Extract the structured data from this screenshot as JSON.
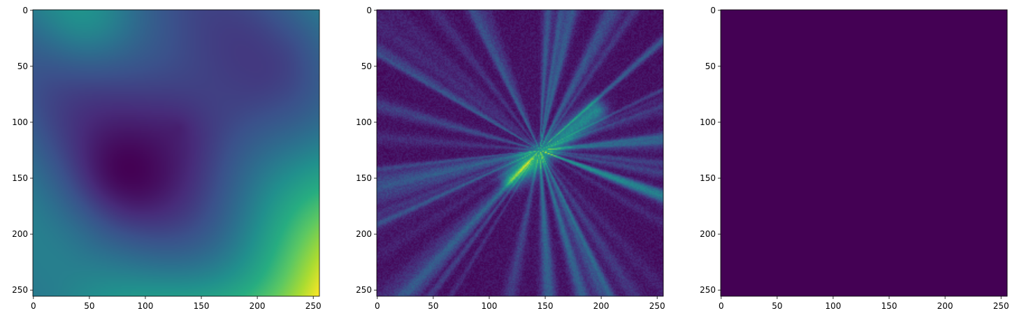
{
  "chart_data": [
    {
      "type": "heatmap",
      "colormap": "viridis",
      "pattern": "smooth-field",
      "description_values": "dark minimum near (130,105), bright maximum at bottom-right",
      "xlim": [
        0,
        256
      ],
      "ylim": [
        256,
        0
      ],
      "xticks": [
        0,
        50,
        100,
        150,
        200,
        250
      ],
      "yticks": [
        0,
        50,
        100,
        150,
        200,
        250
      ],
      "xticklabels": [
        "0",
        "50",
        "100",
        "150",
        "200",
        "250"
      ],
      "yticklabels": [
        "0",
        "50",
        "100",
        "150",
        "200",
        "250"
      ]
    },
    {
      "type": "heatmap",
      "colormap": "viridis",
      "pattern": "streaks",
      "description_values": "radial streaks, bright ridge from (120,150) to (195,90)",
      "xlim": [
        0,
        256
      ],
      "ylim": [
        256,
        0
      ],
      "xticks": [
        0,
        50,
        100,
        150,
        200,
        250
      ],
      "yticks": [
        0,
        50,
        100,
        150,
        200,
        250
      ],
      "xticklabels": [
        "0",
        "50",
        "100",
        "150",
        "200",
        "250"
      ],
      "yticklabels": [
        "0",
        "50",
        "100",
        "150",
        "200",
        "250"
      ]
    },
    {
      "type": "heatmap",
      "colormap": "viridis",
      "pattern": "constant",
      "description_values": "uniform minimum value",
      "xlim": [
        0,
        256
      ],
      "ylim": [
        256,
        0
      ],
      "xticks": [
        0,
        50,
        100,
        150,
        200,
        250
      ],
      "yticks": [
        0,
        50,
        100,
        150,
        200,
        250
      ],
      "xticklabels": [
        "0",
        "50",
        "100",
        "150",
        "200",
        "250"
      ],
      "yticklabels": [
        "0",
        "50",
        "100",
        "150",
        "200",
        "250"
      ]
    }
  ]
}
